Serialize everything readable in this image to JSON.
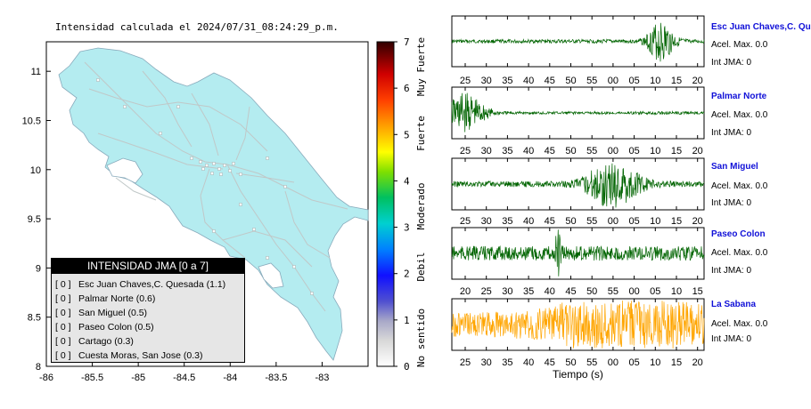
{
  "title": "Intensidad calculada el 2024/07/31_08:24:29_p.m.",
  "map": {
    "lon_ticks": [
      "-86",
      "-85.5",
      "-85",
      "-84.5",
      "-84",
      "-83.5",
      "-83"
    ],
    "lat_ticks": [
      "11",
      "10.5",
      "10",
      "9.5",
      "9",
      "8.5",
      "8"
    ],
    "land_color": "#b4ecf0",
    "water_color": "#ffffff"
  },
  "colorbar": {
    "ticks": [
      "0",
      "1",
      "2",
      "3",
      "4",
      "5",
      "6",
      "7"
    ],
    "labels": [
      "No sentido",
      "Debil",
      "Moderado",
      "Fuerte",
      "Muy Fuerte"
    ]
  },
  "legend": {
    "header": "INTENSIDAD JMA [0 a 7]",
    "rows": [
      {
        "val": "[ 0 ]",
        "text": "Esc Juan Chaves,C. Quesada (1.1)"
      },
      {
        "val": "[ 0 ]",
        "text": "Palmar Norte (0.6)"
      },
      {
        "val": "[ 0 ]",
        "text": "San Miguel (0.5)"
      },
      {
        "val": "[ 0 ]",
        "text": "Paseo Colon (0.5)"
      },
      {
        "val": "[ 0 ]",
        "text": "Cartago (0.3)"
      },
      {
        "val": "[ 0 ]",
        "text": "Cuesta Moras, San Jose (0.3)"
      }
    ]
  },
  "stations": [
    {
      "name": "Esc Juan Chaves,C. Qu",
      "acel": "Acel. Max. 0.0",
      "int": "Int JMA: 0",
      "color": "#006400",
      "ticks": [
        "25",
        "30",
        "35",
        "40",
        "45",
        "50",
        "55",
        "00",
        "05",
        "10",
        "15",
        "20"
      ]
    },
    {
      "name": "Palmar Norte",
      "acel": "Acel. Max. 0.0",
      "int": "Int JMA: 0",
      "color": "#006400",
      "ticks": [
        "25",
        "30",
        "35",
        "40",
        "45",
        "50",
        "55",
        "00",
        "05",
        "10",
        "15",
        "20"
      ]
    },
    {
      "name": "San Miguel",
      "acel": "Acel. Max. 0.0",
      "int": "Int JMA: 0",
      "color": "#006400",
      "ticks": [
        "25",
        "30",
        "35",
        "40",
        "45",
        "50",
        "55",
        "00",
        "05",
        "10",
        "15",
        "20"
      ]
    },
    {
      "name": "Paseo Colon",
      "acel": "Acel. Max. 0.0",
      "int": "Int JMA: 0",
      "color": "#006400",
      "ticks": [
        "20",
        "25",
        "30",
        "35",
        "40",
        "45",
        "50",
        "55",
        "00",
        "05",
        "10",
        "15"
      ]
    },
    {
      "name": "La Sabana",
      "acel": "Acel. Max. 0.0",
      "int": "Int JMA: 0",
      "color": "#ffa500",
      "ticks": [
        "25",
        "30",
        "35",
        "40",
        "45",
        "50",
        "55",
        "00",
        "05",
        "10",
        "15",
        "20"
      ]
    }
  ],
  "xlabel": "Tiempo (s)",
  "chart_data": [
    {
      "type": "heatmap",
      "title": "Intensidad calculada el 2024/07/31_08:24:29_p.m.",
      "xlim": [
        -86,
        -82.5
      ],
      "ylim": [
        8,
        11.3
      ],
      "colorbar_range": [
        0,
        7
      ],
      "legend_placement": "bottom-left"
    },
    {
      "type": "line",
      "series": [
        {
          "name": "Esc Juan Chaves,C. Qu",
          "burst_center": 0.83,
          "burst_width": 0.05,
          "noise": 0.08,
          "burst_amp": 0.85
        },
        {
          "name": "Palmar Norte",
          "burst_center": 0.05,
          "burst_width": 0.08,
          "noise": 0.06,
          "burst_amp": 0.8
        },
        {
          "name": "San Miguel",
          "burst_center": 0.64,
          "burst_width": 0.1,
          "noise": 0.12,
          "burst_amp": 0.95
        },
        {
          "name": "Paseo Colon",
          "burst_center": 0.42,
          "burst_width": 0.01,
          "noise": 0.3,
          "burst_amp": 0.9
        },
        {
          "name": "La Sabana",
          "burst_center": 0.7,
          "burst_width": 0.3,
          "noise": 0.5,
          "burst_amp": 0.9
        }
      ],
      "xlabel": "Tiempo (s)"
    }
  ]
}
